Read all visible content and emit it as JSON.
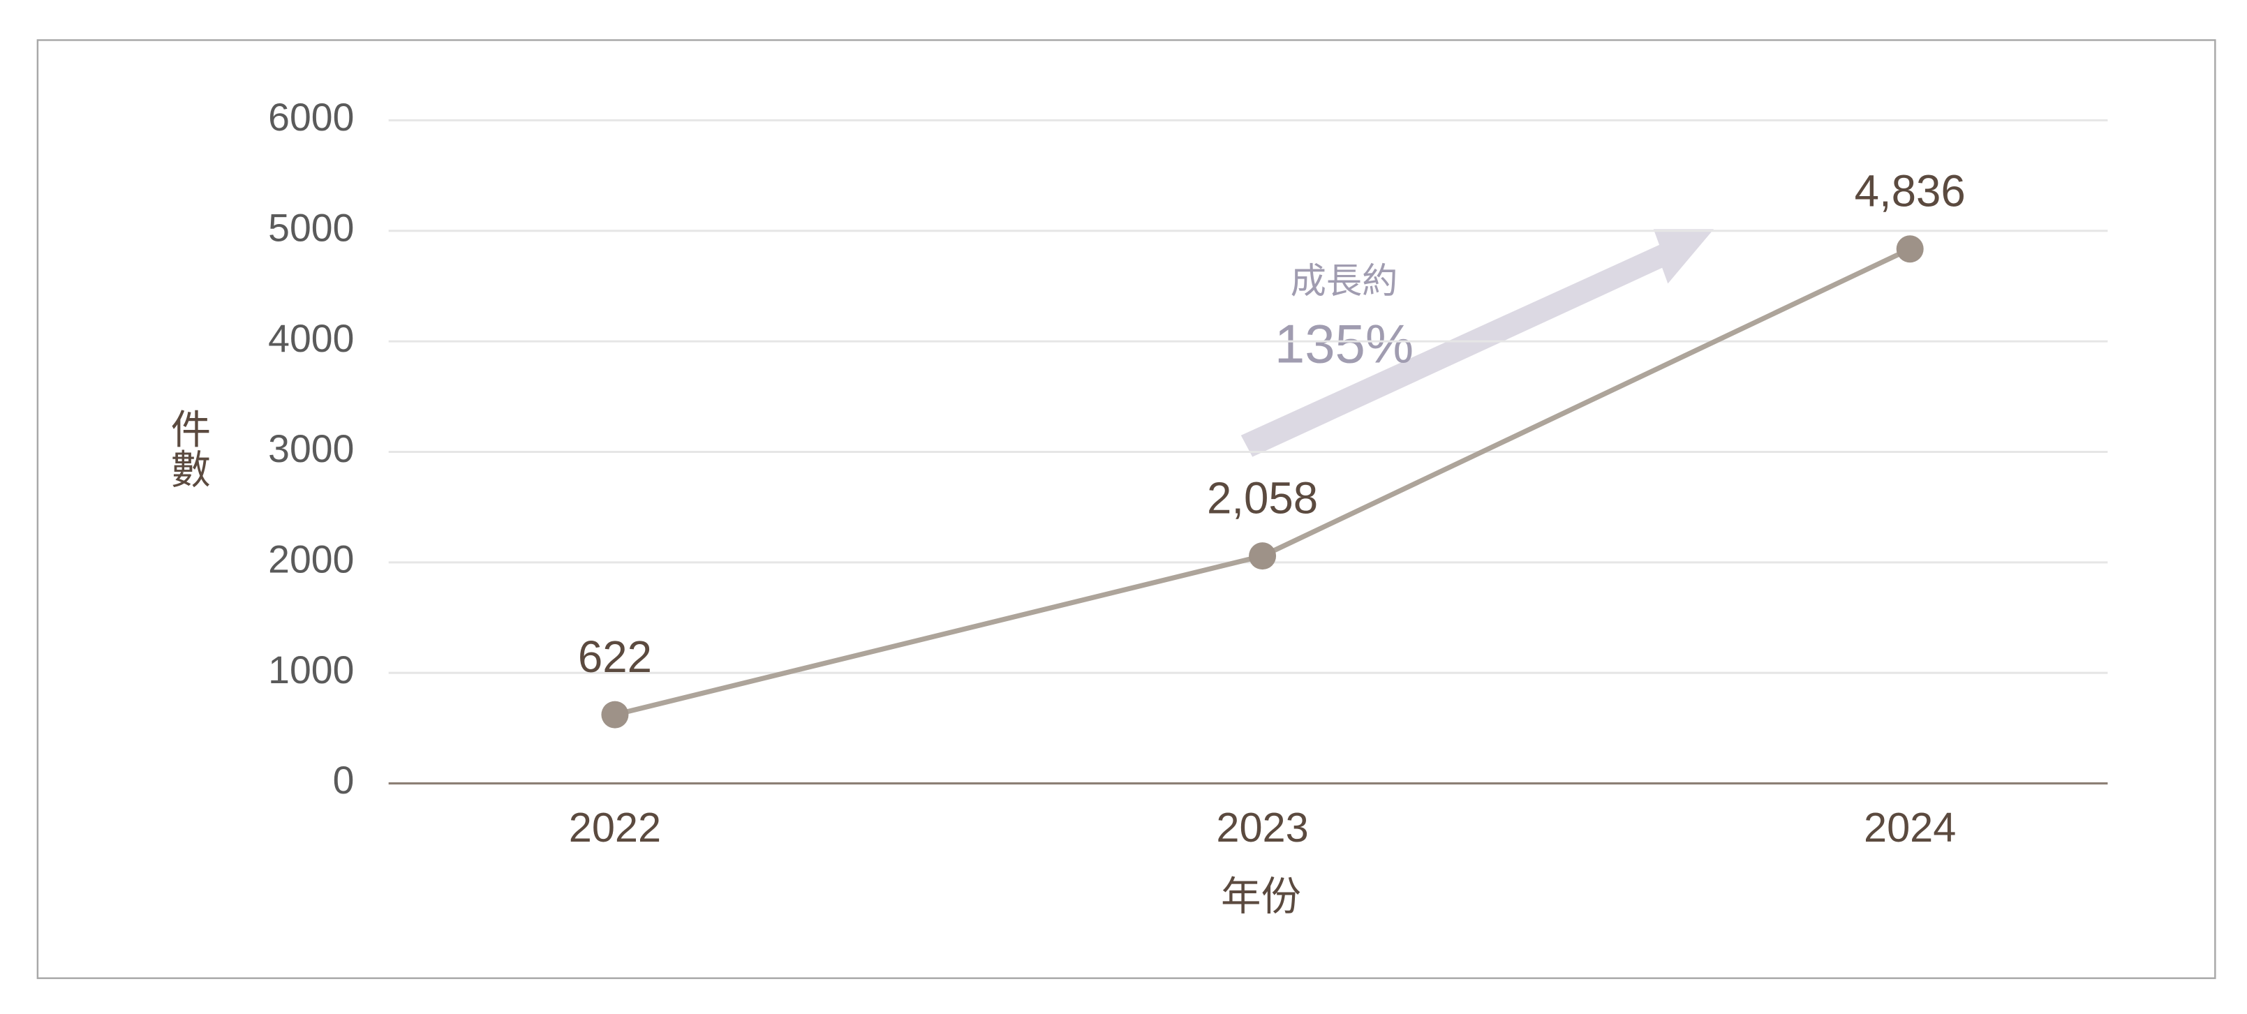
{
  "chart_data": {
    "type": "line",
    "x_label": "年份",
    "y_label": "件數",
    "categories": [
      "2022",
      "2023",
      "2024"
    ],
    "series": [
      {
        "color": "#ada49a",
        "marker_color": "#9e9288",
        "values": [
          622,
          2058,
          4836
        ],
        "value_labels": [
          "622",
          "2,058",
          "4,836"
        ]
      }
    ],
    "ylim": [
      0,
      6000
    ],
    "yticks": [
      0,
      1000,
      2000,
      3000,
      4000,
      5000,
      6000
    ],
    "grid": true,
    "annotation": {
      "label": "成長約",
      "value": "135%"
    }
  }
}
